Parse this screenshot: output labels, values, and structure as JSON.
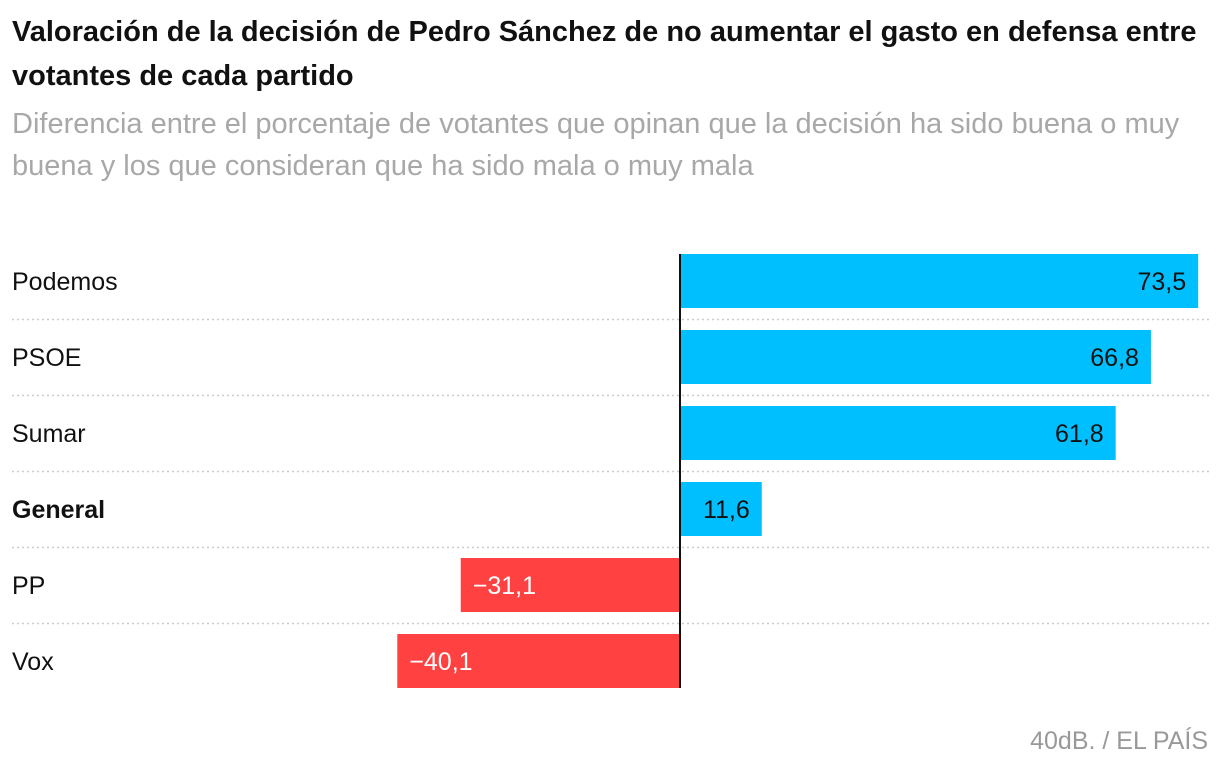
{
  "header": {
    "title": "Valoración de la decisión de Pedro Sánchez de no aumentar el gasto en defensa entre votantes de cada partido",
    "subtitle": "Diferencia entre el porcentaje de votantes que opinan que la decisión ha sido buena o muy buena y los que consideran que ha sido mala o muy mala"
  },
  "footer": {
    "source": "40dB. / EL PAÍS"
  },
  "colors": {
    "positive": "#00bfff",
    "negative": "#ff4141",
    "axis": "#111111",
    "grid": "#cccccc"
  },
  "chart_data": {
    "type": "bar",
    "orientation": "horizontal",
    "title": "Valoración de la decisión de Pedro Sánchez de no aumentar el gasto en defensa entre votantes de cada partido",
    "subtitle": "Diferencia entre el porcentaje de votantes que opinan que la decisión ha sido buena o muy buena y los que consideran que ha sido mala o muy mala",
    "categories": [
      "Podemos",
      "PSOE",
      "Sumar",
      "General",
      "PP",
      "Vox"
    ],
    "values": [
      73.5,
      66.8,
      61.8,
      11.6,
      -31.1,
      -40.1
    ],
    "labels": [
      "73,5",
      "66,8",
      "61,8",
      "11,6",
      "−31,1",
      "−40,1"
    ],
    "bold_categories": [
      "General"
    ],
    "xlim": [
      -40.1,
      73.5
    ],
    "xlabel": "",
    "ylabel": "",
    "grid": false,
    "legend": "none"
  }
}
